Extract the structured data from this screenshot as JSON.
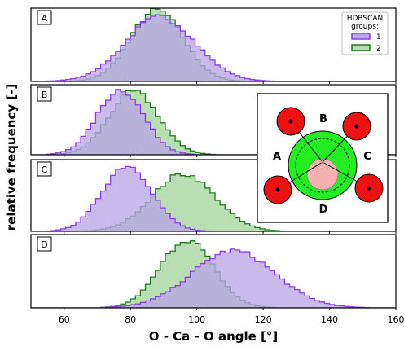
{
  "chart_data": {
    "type": "histogram",
    "xlabel": "O - Ca - O angle [°]",
    "ylabel": "relative frequency [-]",
    "xlim": [
      50,
      160
    ],
    "xticks": [
      60,
      80,
      100,
      120,
      140,
      160
    ],
    "bin_width": 1.5,
    "colors": {
      "group1_fill": "#b9a6e6",
      "group1_edge": "#8a3ee6",
      "group2_fill": "#b6dcb0",
      "group2_edge": "#1d7a1d",
      "overlap_fill": "#a6a3c8"
    },
    "legend": {
      "title": "HDBSCAN\ngroups:",
      "placement": "top-right of panel A",
      "entries": [
        {
          "label": "1",
          "color": "#b9a6e6",
          "edge": "#8a3ee6"
        },
        {
          "label": "2",
          "color": "#b6dcb0",
          "edge": "#1d7a1d"
        }
      ]
    },
    "panels": [
      {
        "label": "A",
        "series": [
          {
            "name": "1",
            "mean": 89,
            "sd": 10.5,
            "peak": 0.88
          },
          {
            "name": "2",
            "mean": 88,
            "sd": 8.0,
            "peak": 0.97
          }
        ]
      },
      {
        "label": "B",
        "series": [
          {
            "name": "1",
            "mean": 77,
            "sd": 7.0,
            "peak": 0.93
          },
          {
            "name": "2",
            "mean": 81,
            "sd": 7.5,
            "peak": 0.9
          }
        ]
      },
      {
        "label": "C",
        "series": [
          {
            "name": "1",
            "mean": 79,
            "sd": 7.5,
            "peak": 0.92
          },
          {
            "name": "2",
            "mean": 96,
            "sd": 9.5,
            "peak": 0.8
          }
        ]
      },
      {
        "label": "D",
        "series": [
          {
            "name": "1",
            "mean": 111,
            "sd": 12.5,
            "peak": 0.78
          },
          {
            "name": "2",
            "mean": 97,
            "sd": 8.0,
            "peak": 0.93
          }
        ]
      }
    ],
    "inset": {
      "labels": [
        "A",
        "B",
        "C",
        "D"
      ],
      "colors": {
        "ca_outer": "#22ee22",
        "ca_inner": "#f5b0b0",
        "oxygen": "#ee1111"
      }
    }
  }
}
